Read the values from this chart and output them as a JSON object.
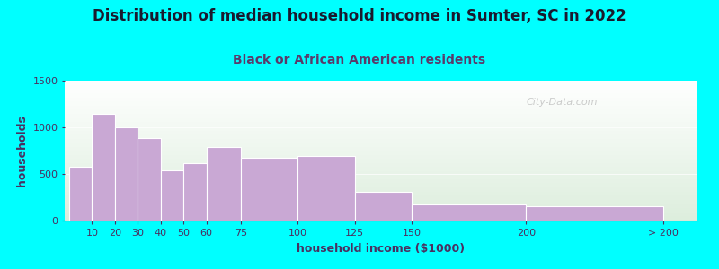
{
  "title": "Distribution of median household income in Sumter, SC in 2022",
  "subtitle": "Black or African American residents",
  "xlabel": "household income ($1000)",
  "ylabel": "households",
  "background_color": "#00FFFF",
  "plot_bg_top": "#ddeedd",
  "plot_bg_bottom": "#ffffff",
  "bar_color": "#c9a8d4",
  "bar_edge_color": "#ffffff",
  "title_color": "#1a1a2e",
  "subtitle_color": "#5a3a6a",
  "axis_label_color": "#4a3060",
  "tick_color": "#4a3060",
  "values": [
    580,
    1140,
    1000,
    880,
    540,
    620,
    790,
    670,
    690,
    305,
    170,
    155
  ],
  "bar_lefts": [
    0,
    10,
    20,
    30,
    40,
    50,
    60,
    75,
    100,
    125,
    150,
    200
  ],
  "bar_widths": [
    10,
    10,
    10,
    10,
    10,
    10,
    15,
    25,
    25,
    25,
    50,
    60
  ],
  "xtick_labels": [
    "10",
    "20",
    "30",
    "40",
    "50",
    "60",
    "75",
    "100",
    "125",
    "150",
    "200",
    "> 200"
  ],
  "xtick_positions": [
    10,
    20,
    30,
    40,
    50,
    60,
    75,
    100,
    125,
    150,
    200,
    260
  ],
  "xlim_left": -2,
  "xlim_right": 275,
  "ylim": [
    0,
    1500
  ],
  "yticks": [
    0,
    500,
    1000,
    1500
  ],
  "watermark_text": "City-Data.com",
  "title_fontsize": 12,
  "subtitle_fontsize": 10,
  "axis_label_fontsize": 9,
  "tick_fontsize": 8
}
